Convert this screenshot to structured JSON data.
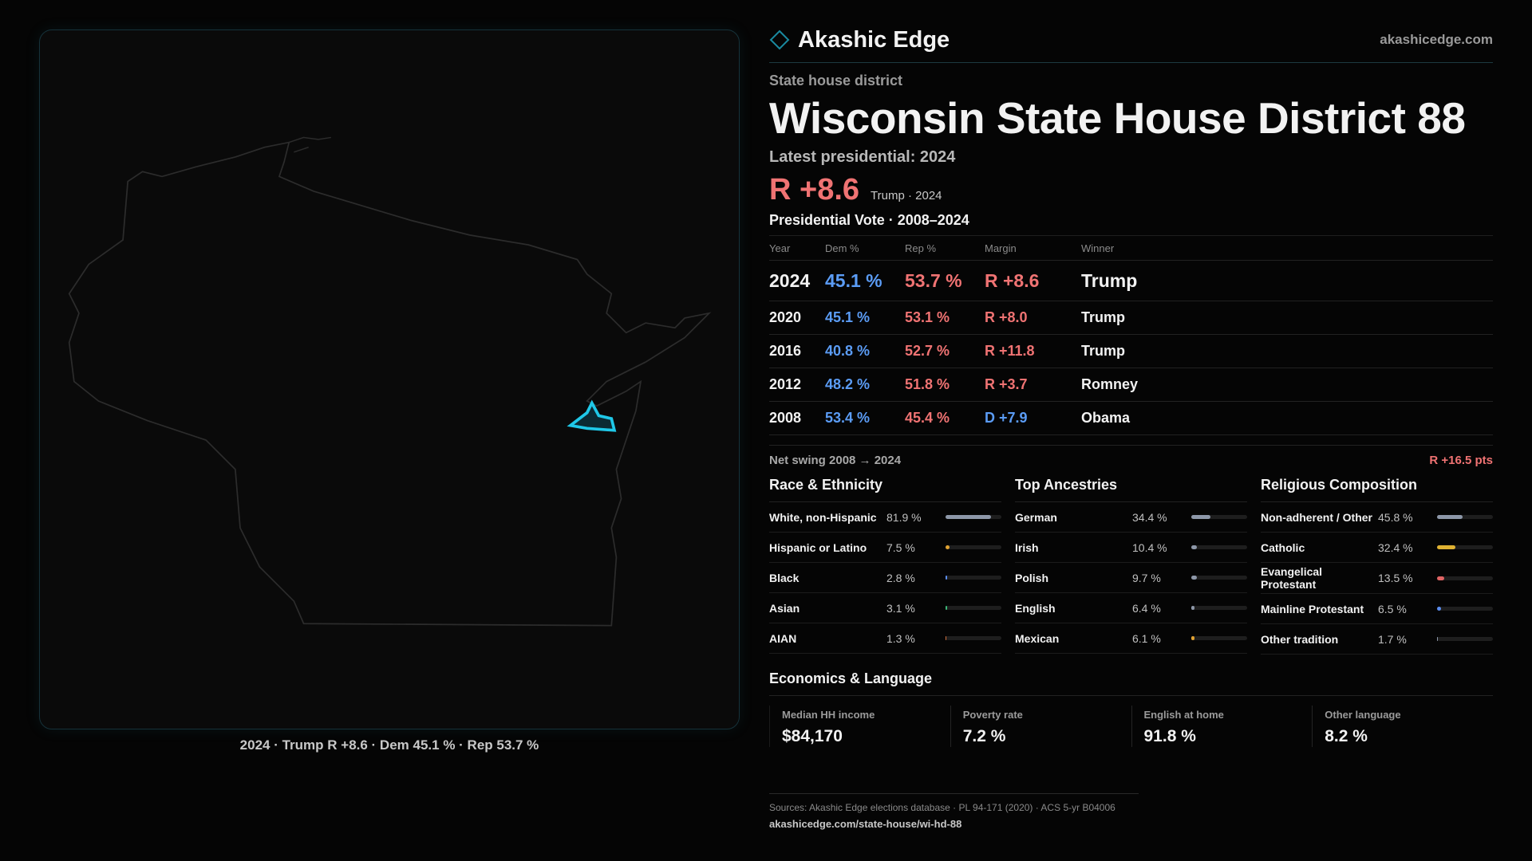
{
  "header": {
    "brand": "Akashic Edge",
    "site": "akashicedge.com"
  },
  "map": {
    "caption": "2024 · Trump R +8.6 · Dem 45.1 % · Rep 53.7 %"
  },
  "district": {
    "kind": "State house district",
    "title": "Wisconsin State House District 88",
    "latest_label": "Latest presidential: 2024",
    "margin": "R +8.6",
    "margin_note": "Trump · 2024"
  },
  "votes": {
    "title": "Presidential Vote · 2008–2024",
    "columns": [
      "Year",
      "Dem %",
      "Rep %",
      "Margin",
      "Winner"
    ],
    "rows": [
      [
        "2024",
        "45.1 %",
        "53.7 %",
        "R +8.6",
        "Trump"
      ],
      [
        "2020",
        "45.1 %",
        "53.1 %",
        "R +8.0",
        "Trump"
      ],
      [
        "2016",
        "40.8 %",
        "52.7 %",
        "R +11.8",
        "Trump"
      ],
      [
        "2012",
        "48.2 %",
        "51.8 %",
        "R +3.7",
        "Romney"
      ],
      [
        "2008",
        "53.4 %",
        "45.4 %",
        "D +7.9",
        "Obama"
      ]
    ],
    "swing_label": "Net swing 2008 → 2024",
    "swing_value": "R +16.5 pts"
  },
  "panels": [
    {
      "title": "Race & Ethnicity",
      "rows": [
        {
          "label": "White, non-Hispanic",
          "value": 81.9,
          "value_label": "81.9 %",
          "color": "#8d97a8"
        },
        {
          "label": "Hispanic or Latino",
          "value": 7.5,
          "value_label": "7.5 %",
          "color": "#e0a232"
        },
        {
          "label": "Black",
          "value": 2.8,
          "value_label": "2.8 %",
          "color": "#5b8def"
        },
        {
          "label": "Asian",
          "value": 3.1,
          "value_label": "3.1 %",
          "color": "#3cb878"
        },
        {
          "label": "AIAN",
          "value": 1.3,
          "value_label": "1.3 %",
          "color": "#d0703c"
        }
      ]
    },
    {
      "title": "Top Ancestries",
      "rows": [
        {
          "label": "German",
          "value": 34.4,
          "value_label": "34.4 %",
          "color": "#8d97a8"
        },
        {
          "label": "Irish",
          "value": 10.4,
          "value_label": "10.4 %",
          "color": "#8d97a8"
        },
        {
          "label": "Polish",
          "value": 9.7,
          "value_label": "9.7 %",
          "color": "#8d97a8"
        },
        {
          "label": "English",
          "value": 6.4,
          "value_label": "6.4 %",
          "color": "#8d97a8"
        },
        {
          "label": "Mexican",
          "value": 6.1,
          "value_label": "6.1 %",
          "color": "#e0a232"
        }
      ]
    },
    {
      "title": "Religious Composition",
      "rows": [
        {
          "label": "Non-adherent / Other",
          "value": 45.8,
          "value_label": "45.8 %",
          "color": "#8d97a8"
        },
        {
          "label": "Catholic",
          "value": 32.4,
          "value_label": "32.4 %",
          "color": "#e0b232"
        },
        {
          "label": "Evangelical Protestant",
          "value": 13.5,
          "value_label": "13.5 %",
          "color": "#e06464"
        },
        {
          "label": "Mainline Protestant",
          "value": 6.5,
          "value_label": "6.5 %",
          "color": "#5b8def"
        },
        {
          "label": "Other tradition",
          "value": 1.7,
          "value_label": "1.7 %",
          "color": "#8d97a8"
        }
      ]
    }
  ],
  "economics": {
    "title": "Economics & Language",
    "items": [
      {
        "label": "Median HH income",
        "value": "$84,170"
      },
      {
        "label": "Poverty rate",
        "value": "7.2 %"
      },
      {
        "label": "English at home",
        "value": "91.8 %"
      },
      {
        "label": "Other language",
        "value": "8.2 %"
      }
    ]
  },
  "footer": {
    "sources": "Sources: Akashic Edge elections database · PL 94-171 (2020) · ACS 5-yr B04006",
    "url": "akashicedge.com/state-house/wi-hd-88"
  }
}
